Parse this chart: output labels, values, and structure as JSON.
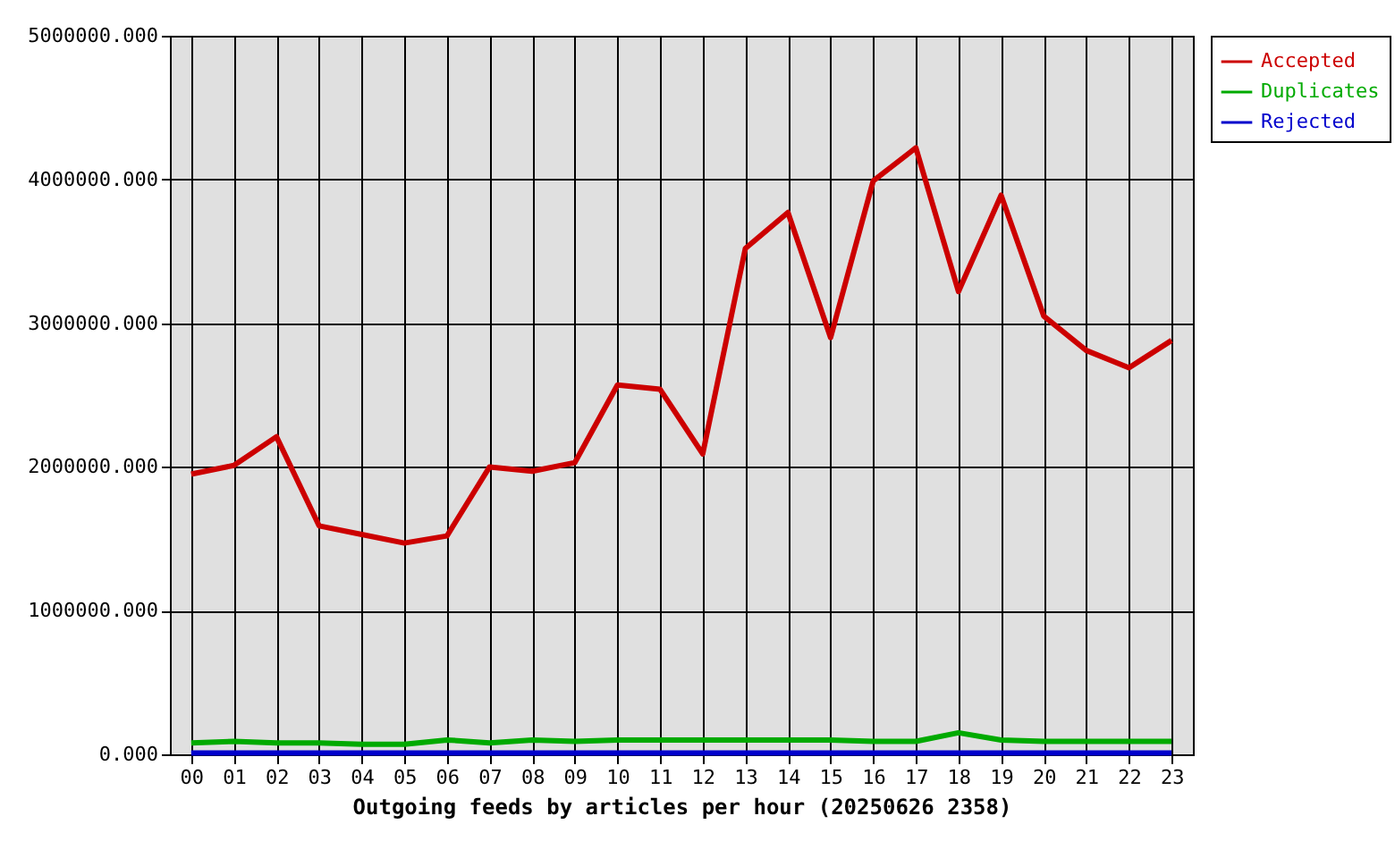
{
  "chart_data": {
    "type": "line",
    "xlabel": "Outgoing feeds by articles per hour (20250626 2358)",
    "categories": [
      "00",
      "01",
      "02",
      "03",
      "04",
      "05",
      "06",
      "07",
      "08",
      "09",
      "10",
      "11",
      "12",
      "13",
      "14",
      "15",
      "16",
      "17",
      "18",
      "19",
      "20",
      "21",
      "22",
      "23"
    ],
    "series": [
      {
        "name": "Accepted",
        "color": "#cc0000",
        "values": [
          1950000,
          2010000,
          2210000,
          1590000,
          1530000,
          1470000,
          1520000,
          2000000,
          1970000,
          2030000,
          2570000,
          2540000,
          2090000,
          3520000,
          3770000,
          2900000,
          3990000,
          4220000,
          3220000,
          3890000,
          3050000,
          2810000,
          2690000,
          2880000
        ]
      },
      {
        "name": "Duplicates",
        "color": "#00aa00",
        "values": [
          80000,
          90000,
          80000,
          80000,
          70000,
          70000,
          100000,
          80000,
          100000,
          90000,
          100000,
          100000,
          100000,
          100000,
          100000,
          100000,
          90000,
          90000,
          150000,
          100000,
          90000,
          90000,
          90000,
          90000
        ]
      },
      {
        "name": "Rejected",
        "color": "#0000cc",
        "values": [
          10000,
          10000,
          10000,
          10000,
          10000,
          10000,
          10000,
          10000,
          10000,
          10000,
          10000,
          10000,
          10000,
          10000,
          10000,
          10000,
          10000,
          10000,
          10000,
          10000,
          10000,
          10000,
          10000,
          10000
        ]
      }
    ],
    "ylim": [
      0,
      5000000
    ],
    "yticks": [
      {
        "value": 0,
        "label": "0.000"
      },
      {
        "value": 1000000,
        "label": "1000000.000"
      },
      {
        "value": 2000000,
        "label": "2000000.000"
      },
      {
        "value": 3000000,
        "label": "3000000.000"
      },
      {
        "value": 4000000,
        "label": "4000000.000"
      },
      {
        "value": 5000000,
        "label": "5000000.000"
      }
    ],
    "grid": true,
    "legend": "top right",
    "line_style": "solid"
  }
}
